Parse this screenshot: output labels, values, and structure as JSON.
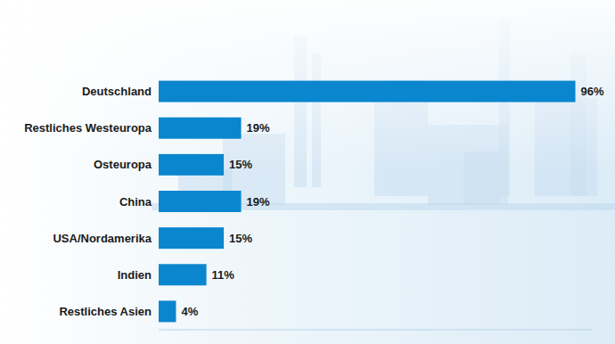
{
  "chart_data": {
    "type": "bar",
    "orientation": "horizontal",
    "categories": [
      "Deutschland",
      "Restliches Westeuropa",
      "Osteuropa",
      "China",
      "USA/Nordamerika",
      "Indien",
      "Restliches Asien"
    ],
    "values": [
      96,
      19,
      15,
      19,
      15,
      11,
      4
    ],
    "value_labels": [
      "96%",
      "19%",
      "15%",
      "19%",
      "15%",
      "11%",
      "4%"
    ],
    "color": "#0a86cf",
    "xlim": [
      0,
      100
    ],
    "data_labels": true,
    "tick_labels": "y",
    "grid": false
  }
}
